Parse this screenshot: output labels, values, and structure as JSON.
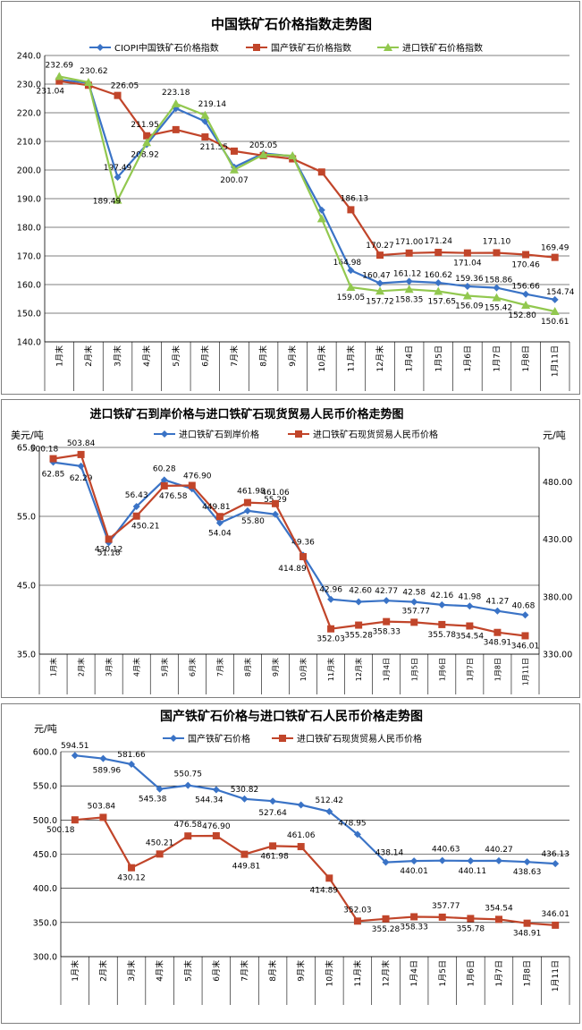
{
  "colors": {
    "blue": "#3a73c6",
    "red": "#c1452a",
    "green": "#92c84f",
    "frame": "#7f7f7f"
  },
  "chart_data": [
    {
      "type": "line",
      "title": "中国铁矿石价格指数走势图",
      "categories": [
        "1月末",
        "2月末",
        "3月末",
        "4月末",
        "5月末",
        "6月末",
        "7月末",
        "8月末",
        "9月末",
        "10月末",
        "11月末",
        "12月末",
        "1月4日",
        "1月5日",
        "1月6日",
        "1月7日",
        "1月8日",
        "1月11日"
      ],
      "ylim": [
        140,
        240
      ],
      "yticks": [
        "140.0",
        "150.0",
        "160.0",
        "170.0",
        "180.0",
        "190.0",
        "200.0",
        "210.0",
        "220.0",
        "230.0",
        "240.0"
      ],
      "series": [
        {
          "name": "CIOPI中国铁矿石价格指数",
          "color": "#3a73c6",
          "marker": "diamond",
          "values": [
            231.5,
            230.4,
            197.49,
            208.92,
            221.5,
            217.0,
            201.0,
            205.8,
            204.8,
            186.0,
            164.98,
            160.47,
            161.12,
            160.62,
            159.36,
            158.86,
            156.66,
            154.74
          ],
          "labels": [
            null,
            null,
            "197.49",
            "208.92",
            null,
            null,
            null,
            null,
            null,
            null,
            "164.98",
            "160.47",
            "161.12",
            "160.62",
            "159.36",
            "158.86",
            "156.66",
            "154.74"
          ]
        },
        {
          "name": "国产铁矿石价格指数",
          "color": "#c1452a",
          "marker": "square",
          "values": [
            231.04,
            229.6,
            226.05,
            211.95,
            214.1,
            211.55,
            206.6,
            205.05,
            203.9,
            199.3,
            186.13,
            170.27,
            171.0,
            171.24,
            171.04,
            171.1,
            170.46,
            169.49
          ],
          "labels": [
            "231.04",
            null,
            "226.05",
            "211.95",
            null,
            "211.55",
            null,
            "205.05",
            null,
            null,
            "186.13",
            "170.27",
            "171.00",
            "171.24",
            "171.04",
            "171.10",
            "170.46",
            "169.49"
          ]
        },
        {
          "name": "进口铁矿石价格指数",
          "color": "#92c84f",
          "marker": "triangle",
          "values": [
            232.69,
            230.62,
            189.49,
            209.6,
            223.18,
            219.14,
            200.07,
            205.4,
            205.0,
            183.0,
            159.05,
            157.72,
            158.35,
            157.65,
            156.09,
            155.42,
            152.8,
            150.61
          ],
          "labels": [
            "232.69",
            "230.62",
            "189.49",
            null,
            "223.18",
            "219.14",
            "200.07",
            null,
            null,
            null,
            "159.05",
            "157.72",
            "158.35",
            "157.65",
            "156.09",
            "155.42",
            "152.80",
            "150.61"
          ]
        }
      ]
    },
    {
      "type": "line",
      "title": "进口铁矿石到岸价格与进口铁矿石现货贸易人民币价格走势图",
      "ylabel_left": "美元/吨",
      "ylabel_right": "元/吨",
      "categories": [
        "1月末",
        "2月末",
        "3月末",
        "4月末",
        "5月末",
        "6月末",
        "7月末",
        "8月末",
        "9月末",
        "10月末",
        "11月末",
        "12月末",
        "1月4日",
        "1月5日",
        "1月6日",
        "1月7日",
        "1月8日",
        "1月11日"
      ],
      "ylim_left": [
        35,
        65
      ],
      "yticks_left": [
        "35.0",
        "45.0",
        "55.0",
        "65.0"
      ],
      "ylim_right": [
        330,
        510
      ],
      "yticks_right": [
        "330.00",
        "380.00",
        "430.00",
        "480.00"
      ],
      "series": [
        {
          "name": "进口铁矿石到岸价格",
          "color": "#3a73c6",
          "marker": "diamond",
          "axis": "left",
          "values": [
            62.85,
            62.29,
            51.18,
            56.43,
            60.28,
            59.0,
            54.04,
            55.8,
            55.29,
            49.36,
            42.96,
            42.6,
            42.77,
            42.58,
            42.16,
            41.98,
            41.27,
            40.68
          ],
          "labels": [
            "62.85",
            "62.29",
            "51.18",
            "56.43",
            "60.28",
            null,
            "54.04",
            "55.80",
            "55.29",
            "49.36",
            "42.96",
            "42.60",
            "42.77",
            "42.58",
            "42.16",
            "41.98",
            "41.27",
            "40.68"
          ]
        },
        {
          "name": "进口铁矿石现货贸易人民币价格",
          "color": "#c1452a",
          "marker": "square",
          "axis": "right",
          "values": [
            500.18,
            503.84,
            430.12,
            450.21,
            476.58,
            476.9,
            449.81,
            461.98,
            461.06,
            414.89,
            352.03,
            355.28,
            358.33,
            357.77,
            355.78,
            354.54,
            348.91,
            346.01
          ],
          "labels": [
            "500.18",
            "503.84",
            "430.12",
            "450.21",
            "476.58",
            "476.90",
            "449.81",
            "461.98",
            "461.06",
            "414.89",
            "352.03",
            "355.28",
            "358.33",
            "357.77",
            "355.78",
            "354.54",
            "348.91",
            "346.01"
          ]
        }
      ]
    },
    {
      "type": "line",
      "title": "国产铁矿石价格与进口铁矿石人民币价格走势图",
      "ylabel": "元/吨",
      "categories": [
        "1月末",
        "2月末",
        "3月末",
        "4月末",
        "5月末",
        "6月末",
        "7月末",
        "8月末",
        "9月末",
        "10月末",
        "11月末",
        "12月末",
        "1月4日",
        "1月5日",
        "1月6日",
        "1月7日",
        "1月8日",
        "1月11日"
      ],
      "ylim": [
        300,
        600
      ],
      "yticks": [
        "300.0",
        "350.0",
        "400.0",
        "450.0",
        "500.0",
        "550.0",
        "600.0"
      ],
      "series": [
        {
          "name": "国产铁矿石价格",
          "color": "#3a73c6",
          "marker": "diamond",
          "values": [
            594.51,
            589.96,
            581.66,
            545.38,
            550.75,
            544.34,
            530.82,
            527.64,
            522.0,
            512.42,
            478.95,
            438.14,
            440.01,
            440.63,
            440.11,
            440.27,
            438.63,
            436.13
          ],
          "labels": [
            "594.51",
            "589.96",
            "581.66",
            "545.38",
            "550.75",
            "544.34",
            "530.82",
            "527.64",
            null,
            "512.42",
            "478.95",
            "438.14",
            "440.01",
            "440.63",
            "440.11",
            "440.27",
            "438.63",
            "436.13"
          ]
        },
        {
          "name": "进口铁矿石现货贸易人民币价格",
          "color": "#c1452a",
          "marker": "square",
          "values": [
            500.18,
            503.84,
            430.12,
            450.21,
            476.58,
            476.9,
            449.81,
            461.98,
            461.06,
            414.89,
            352.03,
            355.28,
            358.33,
            357.77,
            355.78,
            354.54,
            348.91,
            346.01
          ],
          "labels": [
            "500.18",
            "503.84",
            "430.12",
            "450.21",
            "476.58",
            "476.90",
            "449.81",
            "461.98",
            "461.06",
            "414.89",
            "352.03",
            "355.28",
            "358.33",
            "357.77",
            "355.78",
            "354.54",
            "348.91",
            "346.01"
          ]
        }
      ]
    }
  ]
}
